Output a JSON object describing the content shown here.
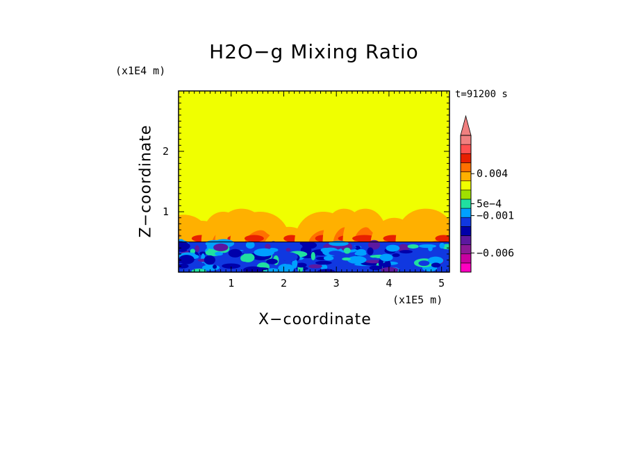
{
  "chart_data": {
    "type": "heatmap",
    "title": "H2O−g Mixing Ratio",
    "xlabel": "X−coordinate",
    "ylabel": "Z−coordinate",
    "x_scale_note": "(x1E5 m)",
    "z_scale_note": "(x1E4 m)",
    "time_label": "t=91200 s",
    "xlim": [
      0,
      5.15
    ],
    "ylim": [
      0,
      3.0
    ],
    "x_ticks": [
      "1",
      "2",
      "3",
      "4",
      "5"
    ],
    "y_ticks": [
      "1",
      "2"
    ],
    "x_tick_values": [
      1,
      2,
      3,
      4,
      5
    ],
    "y_tick_values": [
      1,
      2
    ],
    "background_value_color": "#f0ff00",
    "boundary_layer_top": 0.5,
    "colorbar": {
      "colors": [
        "#ff00c0",
        "#c800a0",
        "#8c1896",
        "#5c18a0",
        "#0000aa",
        "#1038e0",
        "#00a0ff",
        "#20e0a0",
        "#a0e000",
        "#f0ff00",
        "#ffb000",
        "#ff7000",
        "#e82000",
        "#ff5050",
        "#f08080"
      ],
      "labels": [
        "−0.006",
        "−0.001",
        "5e−4",
        "0.004"
      ],
      "label_positions": [
        2.1,
        6.2,
        7.5,
        10.8
      ]
    }
  }
}
